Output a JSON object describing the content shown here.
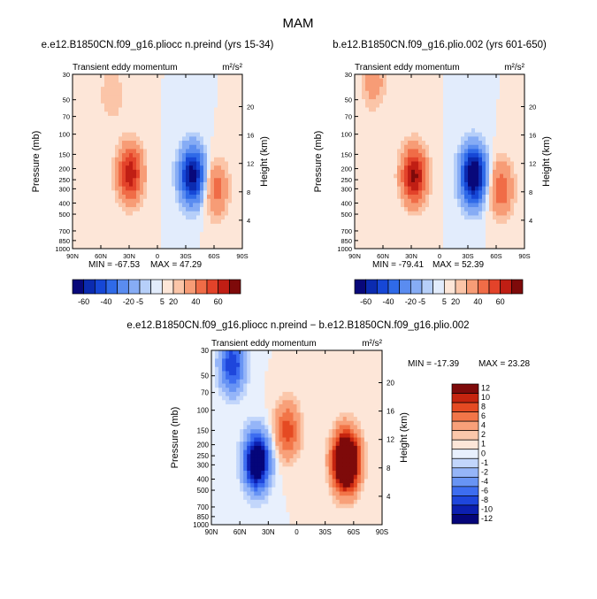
{
  "figure_title": "MAM",
  "chart_data": [
    {
      "type": "heatmap",
      "title": "e.e12.B1850CN.f09_g16.pliocc n.preind (yrs 15-34)",
      "left_label": "Transient eddy momentum",
      "right_label": "m²/s²",
      "ylabel": "Pressure (mb)",
      "ylabel_right": "Height (km)",
      "x_ticks": [
        "90N",
        "60N",
        "30N",
        "0",
        "30S",
        "60S",
        "90S"
      ],
      "y_ticks": [
        "30",
        "50",
        "70",
        "100",
        "150",
        "200",
        "250",
        "300",
        "400",
        "500",
        "700",
        "850",
        "1000"
      ],
      "height_ticks": [
        "20",
        "16",
        "12",
        "8",
        "4"
      ],
      "min_label": "MIN = -67.53",
      "max_label": "MAX = 47.29",
      "min": -67.53,
      "max": 47.29,
      "features": [
        {
          "lat": 29,
          "p": 220,
          "value": 47.29,
          "note": "positive core"
        },
        {
          "lat": -37,
          "p": 230,
          "value": -67.53,
          "note": "negative core"
        },
        {
          "lat": -62,
          "p": 300,
          "value": 25,
          "note": "positive core"
        },
        {
          "lat": 48,
          "p": 45,
          "value": 10,
          "note": "upper positive lobe"
        }
      ],
      "colorbar_labels": [
        "-60",
        "-40",
        "-20",
        "-5",
        "5",
        "20",
        "40",
        "60"
      ]
    },
    {
      "type": "heatmap",
      "title": "b.e12.B1850CN.f09_g16.plio.002 (yrs 601-650)",
      "left_label": "Transient eddy momentum",
      "right_label": "m²/s²",
      "ylabel": "Pressure (mb)",
      "ylabel_right": "Height (km)",
      "x_ticks": [
        "90N",
        "60N",
        "30N",
        "0",
        "30S",
        "60S",
        "90S"
      ],
      "y_ticks": [
        "30",
        "50",
        "70",
        "100",
        "150",
        "200",
        "250",
        "300",
        "400",
        "500",
        "700",
        "850",
        "1000"
      ],
      "height_ticks": [
        "20",
        "16",
        "12",
        "8",
        "4"
      ],
      "min_label": "MIN = -79.41",
      "max_label": "MAX = 52.39",
      "min": -79.41,
      "max": 52.39,
      "features": [
        {
          "lat": 27,
          "p": 230,
          "value": 52.39,
          "note": "positive core"
        },
        {
          "lat": -36,
          "p": 230,
          "value": -79.41,
          "note": "negative core"
        },
        {
          "lat": -65,
          "p": 300,
          "value": 28,
          "note": "positive core"
        },
        {
          "lat": 70,
          "p": 35,
          "value": 15,
          "note": "upper positive lobe"
        }
      ],
      "colorbar_labels": [
        "-60",
        "-40",
        "-20",
        "-5",
        "5",
        "20",
        "40",
        "60"
      ]
    },
    {
      "type": "heatmap",
      "title": "e.e12.B1850CN.f09_g16.pliocc n.preind − b.e12.B1850CN.f09_g16.plio.002",
      "left_label": "Transient eddy momentum",
      "right_label": "m²/s²",
      "ylabel": "Pressure (mb)",
      "ylabel_right": "Height (km)",
      "x_ticks": [
        "90N",
        "60N",
        "30N",
        "0",
        "30S",
        "60S",
        "90S"
      ],
      "y_ticks": [
        "30",
        "50",
        "70",
        "100",
        "150",
        "200",
        "250",
        "300",
        "400",
        "500",
        "700",
        "850",
        "1000"
      ],
      "height_ticks": [
        "20",
        "16",
        "12",
        "8",
        "4"
      ],
      "min_label": "MIN = -17.39",
      "max_label": "MAX = 23.28",
      "min": -17.39,
      "max": 23.28,
      "features": [
        {
          "lat": 42,
          "p": 280,
          "value": -17.39,
          "note": "negative core"
        },
        {
          "lat": -52,
          "p": 280,
          "value": 23.28,
          "note": "positive core"
        },
        {
          "lat": 10,
          "p": 150,
          "value": 7,
          "note": "small positive lobe"
        },
        {
          "lat": 68,
          "p": 40,
          "value": -10,
          "note": "upper negative lobe"
        }
      ],
      "colorbar_labels": [
        "12",
        "10",
        "8",
        "6",
        "4",
        "2",
        "1",
        "0",
        "-1",
        "-2",
        "-4",
        "-6",
        "-8",
        "-10",
        "-12"
      ]
    }
  ]
}
